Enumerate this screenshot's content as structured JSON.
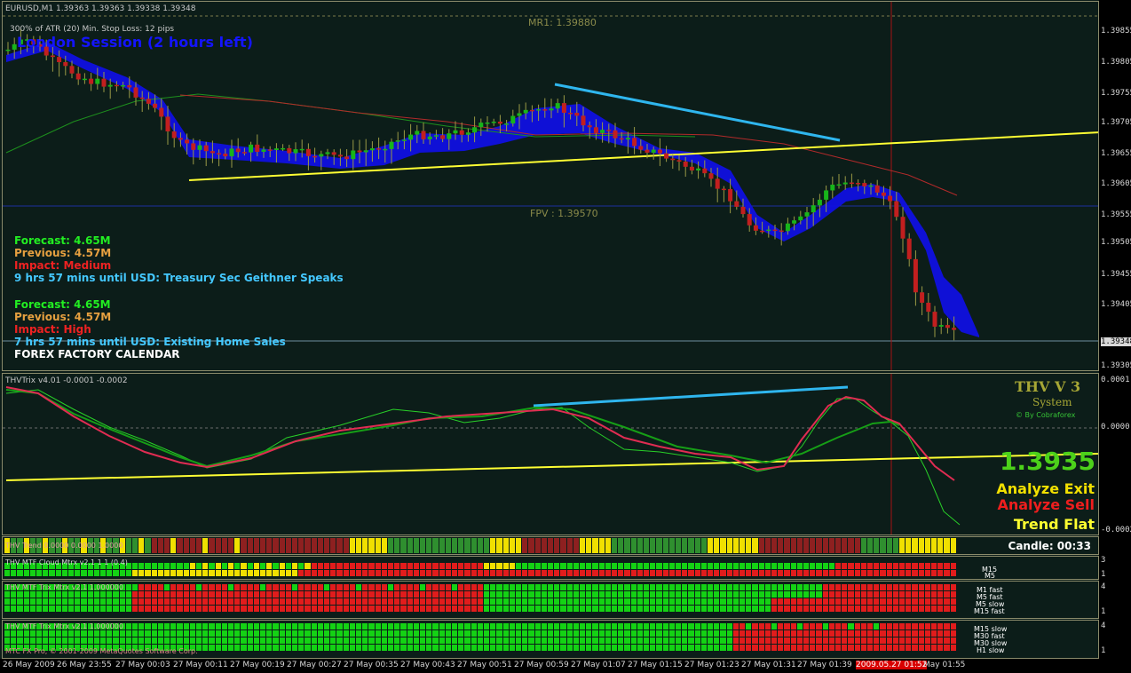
{
  "header": {
    "symbol_info": "EURUSD,M1  1.39363 1.39363 1.39338 1.39348",
    "atr_info": "300% of ATR (20)     Min. Stop Loss:   12 pips",
    "session": "London Session (2 hours left)",
    "mr1": "MR1: 1.39880",
    "fpv": "FPV : 1.39570"
  },
  "price_axis": [
    "1.39855",
    "1.39805",
    "1.39755",
    "1.39705",
    "1.39655",
    "1.39605",
    "1.39555",
    "1.39505",
    "1.39455",
    "1.39405",
    "1.39348",
    "1.39305"
  ],
  "news": [
    {
      "forecast": "Forecast: 4.65M",
      "previous": "Previous: 4.57M",
      "impact": "Impact: Medium",
      "until": "9 hrs 57 mins until USD: Treasury Sec Geithner Speaks"
    },
    {
      "forecast": "Forecast: 4.65M",
      "previous": "Previous: 4.57M",
      "impact": "Impact: High",
      "until": "7 hrs 57 mins until USD: Existing Home Sales"
    }
  ],
  "calendar_label": "FOREX FACTORY CALENDAR",
  "indicator": {
    "title": "THVTrix v4.01 -0.0001 -0.0002",
    "axis": [
      "0.0001",
      "0.0000",
      "-0.0002"
    ],
    "brand_title": "THV V 3",
    "brand_sub": "System",
    "brand_credit": "© By Cobraforex",
    "price": "1.3935",
    "status1": "Analyze Exit",
    "status2": "Analyze Sell",
    "status3": "Trend Flat"
  },
  "trend_row": {
    "title": "THV Trend 0.0000 0.0000 1.0000",
    "candle": "Candle:  00:33"
  },
  "mtf1": {
    "title": "THV MTF Cloud Mtrx v2.1 1 1 (0.4)",
    "labels": [
      "M15",
      "M5"
    ],
    "axis": [
      "3",
      "1"
    ]
  },
  "mtf2": {
    "title": "THV MTF Trix Mtrx v2.1 1.000000",
    "labels": [
      "M1 fast",
      "M5 fast",
      "M5 slow",
      "M15 fast"
    ],
    "axis": [
      "4",
      "1"
    ]
  },
  "mtf3": {
    "title": "THV MTF Trix Mtrx v2.1 1.000000",
    "labels": [
      "M15 slow",
      "M30 fast",
      "M30 slow",
      "H1 slow"
    ],
    "axis": [
      "4",
      "1"
    ]
  },
  "copyright": "MTC FX Pro, © 2001-2009 MetaQuotes Software Corp.",
  "time_axis": [
    "26 May 2009",
    "26 May 23:55",
    "27 May 00:03",
    "27 May 00:11",
    "27 May 00:19",
    "27 May 00:27",
    "27 May 00:35",
    "27 May 00:43",
    "27 May 00:51",
    "27 May 00:59",
    "27 May 01:07",
    "27 May 01:15",
    "27 May 01:23",
    "27 May 01:31",
    "27 May 01:39",
    "2009.05.27 01:52",
    "May 01:55"
  ],
  "colors": {
    "bull": "#17b51a",
    "bear": "#c21f1f",
    "cloud": "#1010e0",
    "trendline": "#ffff33",
    "divergence": "#2fb6ee",
    "grid_red": "#c01010",
    "green_cell": "#14d214",
    "red_cell": "#e11c1c",
    "yellow_cell": "#f0e000"
  }
}
